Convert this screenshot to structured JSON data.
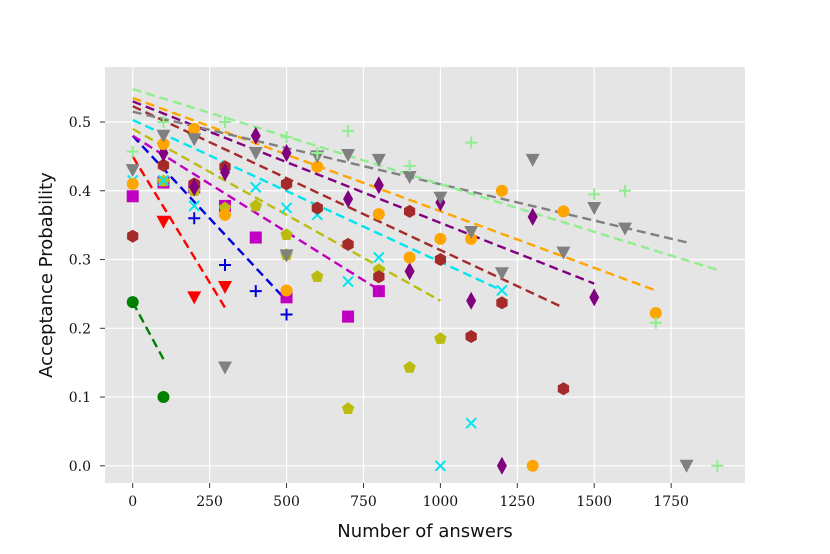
{
  "chart_data": {
    "type": "scatter",
    "title": "",
    "xlabel": "Number of answers",
    "ylabel": "Acceptance Probability",
    "xlim": [
      -90,
      1990
    ],
    "ylim": [
      -0.025,
      0.58
    ],
    "xticks": [
      0,
      250,
      500,
      750,
      1000,
      1250,
      1500,
      1750
    ],
    "yticks": [
      0.0,
      0.1,
      0.2,
      0.3,
      0.4,
      0.5
    ],
    "xtick_labels": [
      "0",
      "250",
      "500",
      "750",
      "1000",
      "1250",
      "1500",
      "1750"
    ],
    "ytick_labels": [
      "0.0",
      "0.1",
      "0.2",
      "0.3",
      "0.4",
      "0.5"
    ],
    "grid": true,
    "background": "#e5e5e5",
    "series": [
      {
        "name": "green circles",
        "marker": "circle",
        "color": "#008000",
        "points": [
          [
            0,
            0.238
          ],
          [
            100,
            0.1
          ]
        ],
        "fit": {
          "x": [
            0,
            100
          ],
          "y": [
            0.238,
            0.155
          ],
          "dash": "dashed"
        }
      },
      {
        "name": "red triangles",
        "marker": "triangle-down",
        "color": "#ff0000",
        "points": [
          [
            100,
            0.355
          ],
          [
            200,
            0.245
          ],
          [
            300,
            0.26
          ]
        ],
        "fit": {
          "x": [
            0,
            300
          ],
          "y": [
            0.45,
            0.23
          ],
          "dash": "dashed"
        }
      },
      {
        "name": "blue plus",
        "marker": "plus",
        "color": "#0000dd",
        "points": [
          [
            200,
            0.36
          ],
          [
            300,
            0.292
          ],
          [
            400,
            0.254
          ],
          [
            500,
            0.22
          ]
        ],
        "fit": {
          "x": [
            0,
            500
          ],
          "y": [
            0.48,
            0.24
          ],
          "dash": "dashed"
        }
      },
      {
        "name": "magenta squares",
        "marker": "square",
        "color": "#c000c0",
        "points": [
          [
            0,
            0.392
          ],
          [
            100,
            0.412
          ],
          [
            200,
            0.405
          ],
          [
            300,
            0.378
          ],
          [
            400,
            0.332
          ],
          [
            500,
            0.245
          ],
          [
            700,
            0.217
          ],
          [
            800,
            0.254
          ]
        ],
        "fit": {
          "x": [
            0,
            800
          ],
          "y": [
            0.48,
            0.256
          ],
          "dash": "dashed"
        }
      },
      {
        "name": "olive pentagons",
        "marker": "pentagon",
        "color": "#bcbc10",
        "points": [
          [
            100,
            0.414
          ],
          [
            200,
            0.4
          ],
          [
            300,
            0.375
          ],
          [
            400,
            0.378
          ],
          [
            500,
            0.336
          ],
          [
            500,
            0.307
          ],
          [
            600,
            0.275
          ],
          [
            700,
            0.083
          ],
          [
            800,
            0.285
          ],
          [
            900,
            0.143
          ],
          [
            1000,
            0.185
          ]
        ],
        "fit": {
          "x": [
            0,
            1000
          ],
          "y": [
            0.49,
            0.24
          ],
          "dash": "dashed"
        }
      },
      {
        "name": "cyan crosses",
        "marker": "x",
        "color": "#00e5ee",
        "points": [
          [
            0,
            0.415
          ],
          [
            100,
            0.415
          ],
          [
            200,
            0.378
          ],
          [
            400,
            0.405
          ],
          [
            500,
            0.375
          ],
          [
            600,
            0.365
          ],
          [
            700,
            0.268
          ],
          [
            800,
            0.303
          ],
          [
            1000,
            0.0
          ],
          [
            1100,
            0.062
          ],
          [
            1200,
            0.255
          ]
        ],
        "fit": {
          "x": [
            0,
            1200
          ],
          "y": [
            0.503,
            0.255
          ],
          "dash": "dashed"
        }
      },
      {
        "name": "brown hexagons",
        "marker": "hexagon",
        "color": "#a52a2a",
        "points": [
          [
            0,
            0.334
          ],
          [
            100,
            0.437
          ],
          [
            200,
            0.41
          ],
          [
            300,
            0.435
          ],
          [
            500,
            0.41
          ],
          [
            600,
            0.375
          ],
          [
            700,
            0.322
          ],
          [
            800,
            0.275
          ],
          [
            900,
            0.37
          ],
          [
            1000,
            0.3
          ],
          [
            1100,
            0.188
          ],
          [
            1200,
            0.237
          ],
          [
            1400,
            0.112
          ]
        ],
        "fit": {
          "x": [
            0,
            1400
          ],
          "y": [
            0.523,
            0.23
          ],
          "dash": "dashed"
        }
      },
      {
        "name": "purple diamonds",
        "marker": "diamond",
        "color": "#800080",
        "points": [
          [
            100,
            0.455
          ],
          [
            200,
            0.405
          ],
          [
            300,
            0.427
          ],
          [
            400,
            0.48
          ],
          [
            500,
            0.455
          ],
          [
            700,
            0.388
          ],
          [
            800,
            0.408
          ],
          [
            900,
            0.283
          ],
          [
            1000,
            0.383
          ],
          [
            1100,
            0.24
          ],
          [
            1200,
            0.0
          ],
          [
            1300,
            0.362
          ],
          [
            1500,
            0.245
          ]
        ],
        "fit": {
          "x": [
            0,
            1500
          ],
          "y": [
            0.53,
            0.265
          ],
          "dash": "dashed"
        }
      },
      {
        "name": "orange circles",
        "marker": "circle",
        "color": "#ffa500",
        "points": [
          [
            0,
            0.41
          ],
          [
            100,
            0.468
          ],
          [
            200,
            0.49
          ],
          [
            300,
            0.365
          ],
          [
            500,
            0.255
          ],
          [
            600,
            0.435
          ],
          [
            800,
            0.366
          ],
          [
            900,
            0.303
          ],
          [
            1000,
            0.33
          ],
          [
            1100,
            0.33
          ],
          [
            1200,
            0.4
          ],
          [
            1300,
            0.0
          ],
          [
            1400,
            0.37
          ],
          [
            1700,
            0.222
          ]
        ],
        "fit": {
          "x": [
            0,
            1700
          ],
          "y": [
            0.535,
            0.255
          ],
          "dash": "dashed"
        }
      },
      {
        "name": "grey triangles",
        "marker": "triangle-down",
        "color": "#808080",
        "points": [
          [
            0,
            0.43
          ],
          [
            100,
            0.48
          ],
          [
            200,
            0.475
          ],
          [
            300,
            0.143
          ],
          [
            400,
            0.455
          ],
          [
            500,
            0.306
          ],
          [
            600,
            0.45
          ],
          [
            700,
            0.452
          ],
          [
            800,
            0.445
          ],
          [
            900,
            0.42
          ],
          [
            1000,
            0.39
          ],
          [
            1100,
            0.34
          ],
          [
            1200,
            0.28
          ],
          [
            1300,
            0.445
          ],
          [
            1400,
            0.31
          ],
          [
            1500,
            0.375
          ],
          [
            1600,
            0.345
          ],
          [
            1800,
            0.0
          ]
        ],
        "fit": {
          "x": [
            0,
            1800
          ],
          "y": [
            0.515,
            0.325
          ],
          "dash": "dashed"
        }
      },
      {
        "name": "light green plus",
        "marker": "plus",
        "color": "#90ee90",
        "points": [
          [
            0,
            0.457
          ],
          [
            100,
            0.5
          ],
          [
            300,
            0.5
          ],
          [
            500,
            0.478
          ],
          [
            600,
            0.455
          ],
          [
            700,
            0.487
          ],
          [
            900,
            0.436
          ],
          [
            1100,
            0.47
          ],
          [
            1500,
            0.395
          ],
          [
            1600,
            0.4
          ],
          [
            1700,
            0.208
          ],
          [
            1900,
            0.0
          ]
        ],
        "fit": {
          "x": [
            0,
            1900
          ],
          "y": [
            0.548,
            0.285
          ],
          "dash": "dashed"
        }
      }
    ]
  }
}
